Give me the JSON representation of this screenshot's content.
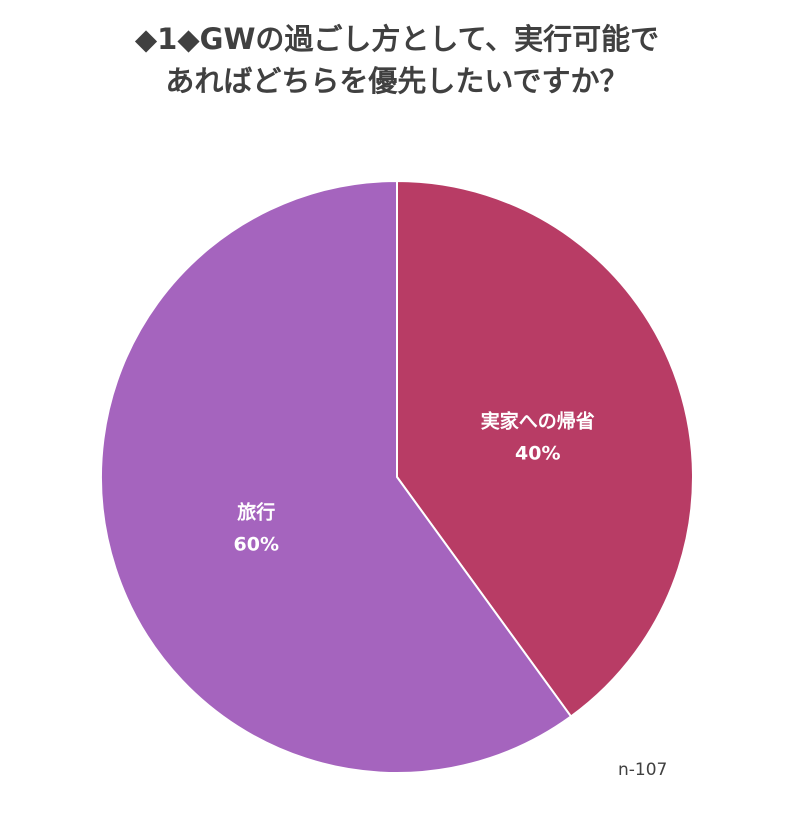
{
  "title_lines": [
    "◆1◆GWの過ごし方として、実行可能で",
    "あればどちらを優先したいですか？"
  ],
  "sample_note": "n-107",
  "chart_data": {
    "type": "pie",
    "title": "◆1◆GWの過ごし方として、実行可能であればどちらを優先したいですか？",
    "slices": [
      {
        "label": "実家への帰省",
        "value": 40,
        "value_label": "40%",
        "color": "#b83c65"
      },
      {
        "label": "旅行",
        "value": 60,
        "value_label": "60%",
        "color": "#a564be"
      }
    ],
    "start": "12 o'clock",
    "direction": "clockwise"
  }
}
